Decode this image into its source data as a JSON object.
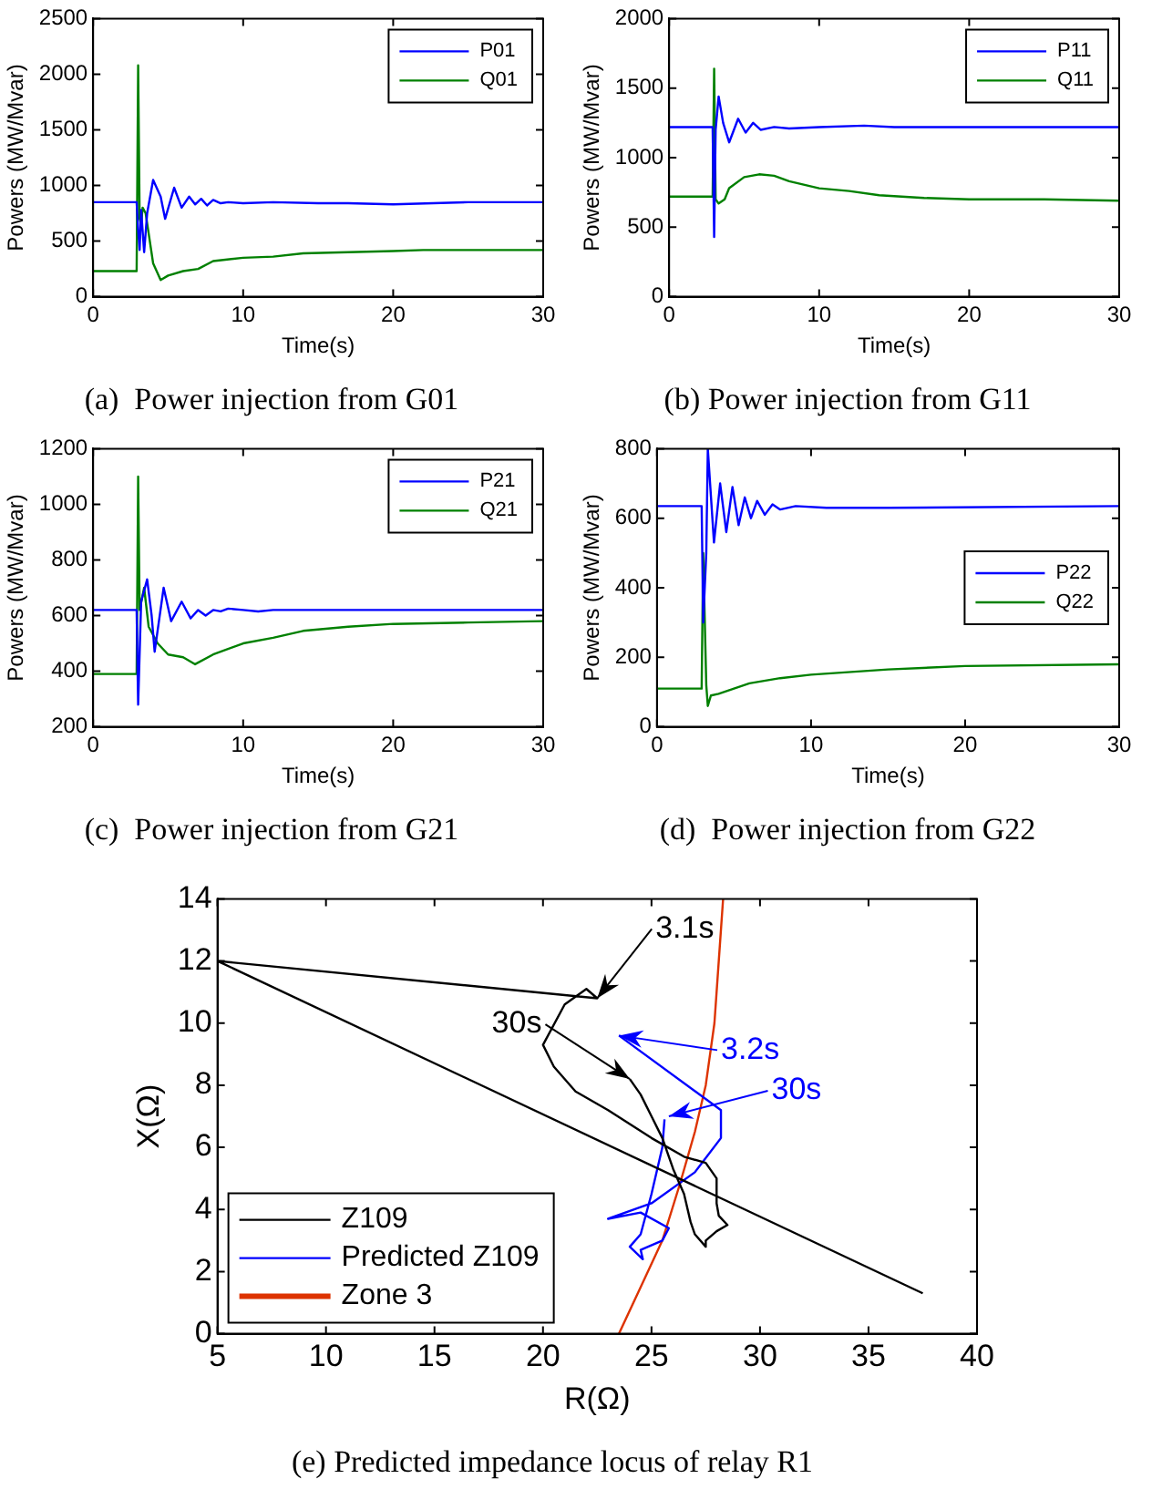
{
  "chart_data": [
    {
      "type": "line",
      "title": "(a)  Power injection from G01",
      "xlabel": "Time(s)",
      "ylabel": "Powers (MW/Mvar)",
      "xlim": [
        0,
        30
      ],
      "xticks": [
        0,
        10,
        20,
        30
      ],
      "ylim": [
        0,
        2500
      ],
      "yticks": [
        0,
        500,
        1000,
        1500,
        2000,
        2500
      ],
      "legend": "top right",
      "series": [
        {
          "name": "P01",
          "color": "#0000ff",
          "x": [
            0,
            2.9,
            3.0,
            3.1,
            3.2,
            3.4,
            3.6,
            4.0,
            4.5,
            4.8,
            5.4,
            5.9,
            6.4,
            6.8,
            7.2,
            7.6,
            8.0,
            8.5,
            9,
            10,
            12,
            15,
            17,
            20,
            25,
            30
          ],
          "values": [
            850,
            850,
            600,
            420,
            780,
            400,
            750,
            1050,
            900,
            700,
            980,
            800,
            900,
            830,
            880,
            820,
            870,
            840,
            850,
            840,
            850,
            840,
            840,
            830,
            850,
            850
          ]
        },
        {
          "name": "Q01",
          "color": "#008000",
          "x": [
            0,
            2.9,
            3.0,
            3.1,
            3.2,
            3.3,
            3.5,
            4,
            4.5,
            5,
            6,
            7,
            8,
            10,
            12,
            14,
            17,
            20,
            22,
            30
          ],
          "values": [
            230,
            230,
            2080,
            700,
            650,
            800,
            750,
            300,
            150,
            190,
            230,
            250,
            320,
            350,
            360,
            390,
            400,
            410,
            420,
            420
          ]
        }
      ]
    },
    {
      "type": "line",
      "title": "(b) Power injection from G11",
      "xlabel": "Time(s)",
      "ylabel": "Powers (MW/Mvar)",
      "xlim": [
        0,
        30
      ],
      "xticks": [
        0,
        10,
        20,
        30
      ],
      "ylim": [
        0,
        2000
      ],
      "yticks": [
        0,
        500,
        1000,
        1500,
        2000
      ],
      "legend": "top right",
      "series": [
        {
          "name": "P11",
          "color": "#0000ff",
          "x": [
            0,
            2.9,
            3.0,
            3.1,
            3.3,
            3.6,
            4.0,
            4.6,
            5.1,
            5.6,
            6.1,
            7,
            8,
            10,
            13,
            15,
            30
          ],
          "values": [
            1220,
            1220,
            430,
            1200,
            1440,
            1250,
            1110,
            1280,
            1180,
            1250,
            1200,
            1220,
            1210,
            1220,
            1230,
            1220,
            1220
          ]
        },
        {
          "name": "Q11",
          "color": "#008000",
          "x": [
            0,
            2.9,
            3.0,
            3.1,
            3.3,
            3.7,
            4,
            5,
            6,
            7,
            8,
            10,
            12,
            14,
            17,
            20,
            25,
            30
          ],
          "values": [
            720,
            720,
            1640,
            700,
            670,
            700,
            780,
            860,
            880,
            870,
            830,
            780,
            760,
            730,
            710,
            700,
            700,
            690
          ]
        }
      ]
    },
    {
      "type": "line",
      "title": "(c)  Power injection from G21",
      "xlabel": "Time(s)",
      "ylabel": "Powers (MW/Mvar)",
      "xlim": [
        0,
        30
      ],
      "xticks": [
        0,
        10,
        20,
        30
      ],
      "ylim": [
        200,
        1200
      ],
      "yticks": [
        200,
        400,
        600,
        800,
        1000,
        1200
      ],
      "legend": "top right",
      "series": [
        {
          "name": "P21",
          "color": "#0000ff",
          "x": [
            0,
            2.9,
            3.0,
            3.2,
            3.6,
            3.9,
            4.1,
            4.7,
            5.2,
            5.9,
            6.5,
            7,
            7.5,
            8,
            8.5,
            9,
            10,
            11,
            12,
            30
          ],
          "values": [
            620,
            620,
            280,
            650,
            730,
            600,
            470,
            700,
            580,
            650,
            590,
            620,
            600,
            620,
            615,
            625,
            620,
            615,
            620,
            620
          ]
        },
        {
          "name": "Q21",
          "color": "#008000",
          "x": [
            0,
            2.9,
            3.0,
            3.1,
            3.4,
            3.7,
            4.3,
            5,
            6,
            6.8,
            8,
            10,
            12,
            14,
            17,
            20,
            25,
            30
          ],
          "values": [
            390,
            390,
            1100,
            620,
            700,
            560,
            500,
            460,
            450,
            425,
            460,
            500,
            520,
            545,
            560,
            570,
            575,
            580
          ]
        }
      ]
    },
    {
      "type": "line",
      "title": "(d)  Power injection from G22",
      "xlabel": "Time(s)",
      "ylabel": "Powers (MW/Mvar)",
      "xlim": [
        0,
        30
      ],
      "xticks": [
        0,
        10,
        20,
        30
      ],
      "ylim": [
        0,
        800
      ],
      "yticks": [
        0,
        200,
        400,
        600,
        800
      ],
      "legend": "right",
      "series": [
        {
          "name": "P22",
          "color": "#0000ff",
          "x": [
            0,
            2.9,
            3.0,
            3.2,
            3.3,
            3.7,
            4.1,
            4.5,
            4.9,
            5.3,
            5.7,
            6.1,
            6.5,
            7,
            7.5,
            8,
            9,
            11,
            15,
            30
          ],
          "values": [
            635,
            635,
            300,
            500,
            800,
            530,
            700,
            560,
            690,
            580,
            660,
            600,
            650,
            610,
            640,
            625,
            635,
            630,
            630,
            635
          ]
        },
        {
          "name": "Q22",
          "color": "#008000",
          "x": [
            0,
            2.9,
            3.0,
            3.2,
            3.3,
            3.5,
            4,
            5,
            6,
            8,
            10,
            15,
            20,
            30
          ],
          "values": [
            110,
            110,
            500,
            120,
            60,
            90,
            95,
            110,
            125,
            140,
            150,
            165,
            175,
            180
          ]
        }
      ]
    },
    {
      "type": "line",
      "title": "(e) Predicted impedance locus of relay R1",
      "xlabel": "R(Ω)",
      "ylabel": "X(Ω)",
      "xlim": [
        5,
        40
      ],
      "xticks": [
        5,
        10,
        15,
        20,
        25,
        30,
        35,
        40
      ],
      "ylim": [
        0,
        14
      ],
      "yticks": [
        0,
        2,
        4,
        6,
        8,
        10,
        12,
        14
      ],
      "legend": "bottom left",
      "annotations": [
        {
          "text": "3.1s",
          "x": 22.5,
          "y": 10.8
        },
        {
          "text": "3.2s",
          "x": 23.5,
          "y": 9.6
        },
        {
          "text": "30s",
          "x": 24,
          "y": 8.2
        },
        {
          "text": "30s",
          "x": 25.8,
          "y": 7.0
        }
      ],
      "series": [
        {
          "name": "Z109",
          "color": "#000000",
          "x": [
            37.5,
            5,
            22.5,
            22,
            21,
            20,
            20.5,
            21.5,
            23,
            25,
            26.5,
            27.5,
            28,
            28,
            28.1,
            28.5,
            28,
            27.5,
            27.5,
            27,
            26.8,
            26.5,
            26,
            25.5,
            25,
            24.5,
            24
          ],
          "values": [
            1.3,
            12,
            10.8,
            11.1,
            10.6,
            9.3,
            8.6,
            7.8,
            7.2,
            6.3,
            5.7,
            5.5,
            5.0,
            4.2,
            3.8,
            3.5,
            3.3,
            3.0,
            2.8,
            3.2,
            3.6,
            4.5,
            5.3,
            6.3,
            7.0,
            7.7,
            8.2
          ]
        },
        {
          "name": "Predicted Z109",
          "color": "#0000ff",
          "x": [
            23.5,
            28.2,
            28.2,
            27,
            25,
            23,
            24.5,
            25.8,
            25.5,
            24.5,
            24.6,
            24,
            24.5,
            25,
            25.5,
            25.6
          ],
          "values": [
            9.6,
            7.2,
            6.3,
            5.2,
            4.2,
            3.7,
            3.9,
            3.4,
            3.0,
            2.7,
            2.4,
            2.8,
            3.2,
            4.5,
            6.0,
            6.9
          ]
        },
        {
          "name": "Zone 3",
          "color": "#dd3300",
          "x": [
            23.5,
            24.5,
            25.5,
            26.3,
            27,
            27.5,
            27.9,
            28.1,
            28.3
          ],
          "values": [
            0,
            1.5,
            3,
            4.8,
            6.5,
            8,
            10,
            12,
            14
          ]
        }
      ]
    }
  ]
}
